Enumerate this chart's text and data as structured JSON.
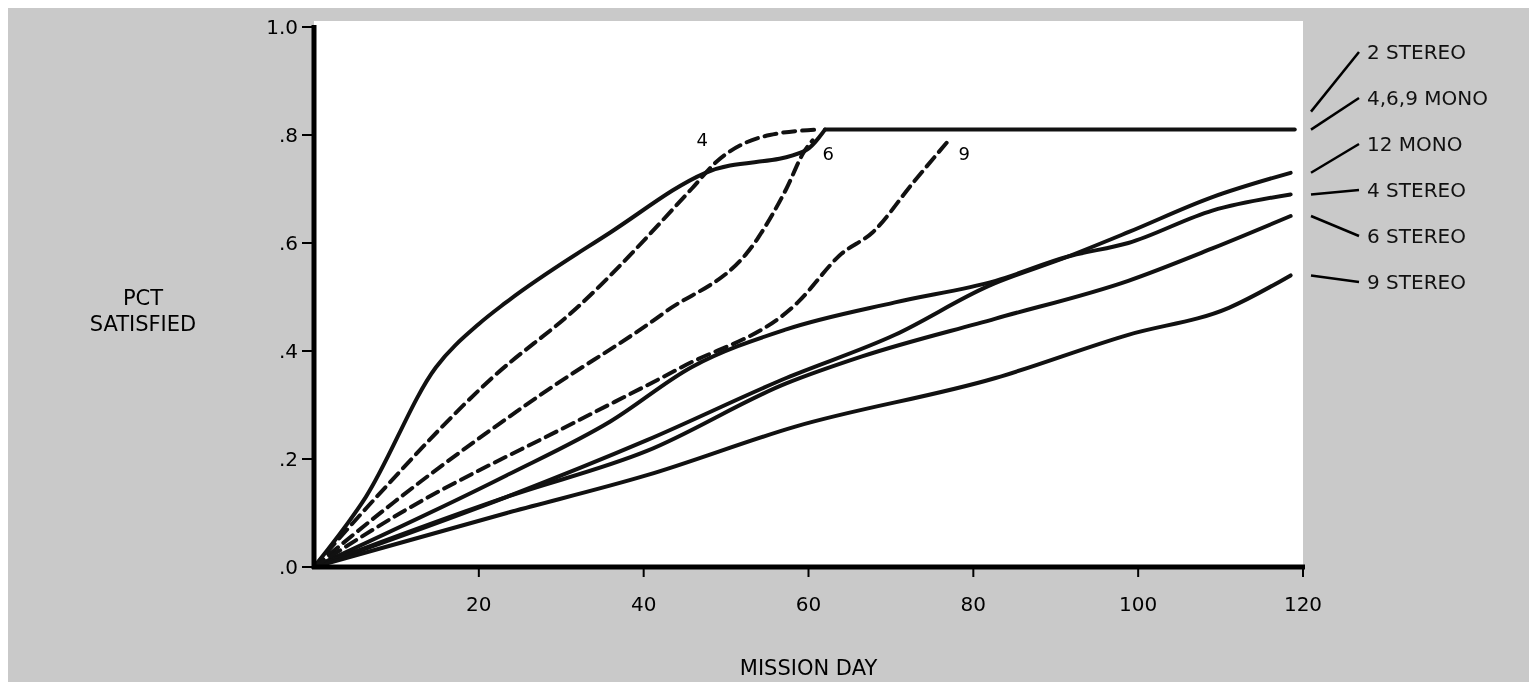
{
  "chart_data": {
    "type": "line",
    "xlabel": "MISSION DAY",
    "ylabel": "PCT SATISFIED",
    "xlim": [
      0,
      120
    ],
    "ylim": [
      0,
      1
    ],
    "xticks": [
      20,
      40,
      60,
      80,
      100,
      120
    ],
    "yticks": [
      {
        "value": 0,
        "label": ".0"
      },
      {
        "value": 0.2,
        "label": ".2"
      },
      {
        "value": 0.4,
        "label": ".4"
      },
      {
        "value": 0.6,
        "label": ".6"
      },
      {
        "value": 0.8,
        "label": ".8"
      },
      {
        "value": 1,
        "label": "1.0"
      }
    ],
    "grid": false,
    "marker": "none",
    "series": [
      {
        "name": "2 STEREO",
        "color": "#111111",
        "line_style": "solid",
        "x": [
          0,
          6.3,
          14.8,
          20,
          23.3,
          36,
          47.5,
          59.5,
          62
        ],
        "values": [
          0,
          0.13,
          0.37,
          0.45,
          0.49,
          0.62,
          0.73,
          0.77,
          0.81
        ]
      },
      {
        "name": "4,6,9 MONO",
        "color": "#111111",
        "line_style": "solid",
        "x": [
          62,
          119
        ],
        "values": [
          0.81,
          0.81
        ]
      },
      {
        "name": "12 MONO",
        "color": "#111111",
        "line_style": "solid",
        "x": [
          0,
          23.4,
          40.4,
          57.3,
          70.5,
          81.8,
          91.5,
          98.8,
          109,
          118.5
        ],
        "values": [
          0,
          0.13,
          0.235,
          0.35,
          0.43,
          0.52,
          0.575,
          0.62,
          0.685,
          0.73
        ]
      },
      {
        "name": "4 STEREO",
        "color": "#111111",
        "line_style": "solid",
        "x": [
          0,
          23.4,
          36,
          45.8,
          57.3,
          70.5,
          82.7,
          91.5,
          98.8,
          109,
          118.5
        ],
        "values": [
          0,
          0.17,
          0.27,
          0.37,
          0.44,
          0.49,
          0.53,
          0.575,
          0.6,
          0.66,
          0.69
        ]
      },
      {
        "name": "6 STEREO",
        "color": "#111111",
        "line_style": "solid",
        "x": [
          0,
          23.4,
          40.4,
          57.3,
          66.5,
          82.7,
          98.8,
          109,
          118.5
        ],
        "values": [
          0,
          0.13,
          0.215,
          0.34,
          0.39,
          0.46,
          0.53,
          0.59,
          0.65
        ]
      },
      {
        "name": "9 STEREO",
        "color": "#111111",
        "line_style": "solid",
        "x": [
          0,
          23.4,
          40.4,
          58.4,
          82.7,
          98.8,
          111,
          118.5
        ],
        "values": [
          0,
          0.1,
          0.17,
          0.26,
          0.35,
          0.43,
          0.48,
          0.54
        ]
      },
      {
        "color": "#111111",
        "line_style": "dashed",
        "x": [
          0,
          7.6,
          21.6,
          31.9,
          45.8,
          48.8,
          55.3,
          61.2
        ],
        "values": [
          0,
          0.13,
          0.35,
          0.48,
          0.7,
          0.75,
          0.8,
          0.81
        ]
      },
      {
        "color": "#111111",
        "line_style": "dashed",
        "x": [
          0,
          9.7,
          27.6,
          42.4,
          53.9,
          57.3,
          59.5,
          60.5
        ],
        "values": [
          0,
          0.12,
          0.32,
          0.47,
          0.61,
          0.7,
          0.77,
          0.79
        ]
      },
      {
        "color": "#111111",
        "line_style": "dashed",
        "x": [
          0,
          10.5,
          31.9,
          44.6,
          58.7,
          64,
          67.8,
          72.6,
          77
        ],
        "values": [
          0,
          0.1,
          0.27,
          0.37,
          0.49,
          0.58,
          0.62,
          0.71,
          0.79
        ]
      }
    ],
    "annotations": [
      {
        "text": "4",
        "x": 48.8,
        "y": 0.75
      },
      {
        "text": "6",
        "x": 60.5,
        "y": 0.79
      },
      {
        "text": "9",
        "x": 77,
        "y": 0.79
      }
    ]
  }
}
